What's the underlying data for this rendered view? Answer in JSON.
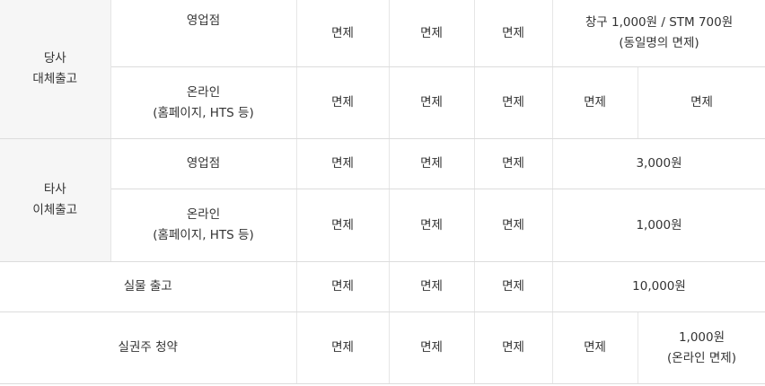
{
  "rows": {
    "own": {
      "group_line1": "당사",
      "group_line2": "대체출고",
      "branch": {
        "label": "영업점",
        "c1": "면제",
        "c2": "면제",
        "c3": "면제",
        "fee_line1": "창구 1,000원 / STM 700원",
        "fee_line2": "(동일명의 면제)"
      },
      "online": {
        "label_line1": "온라인",
        "label_line2": "(홈페이지, HTS 등)",
        "c1": "면제",
        "c2": "면제",
        "c3": "면제",
        "c4": "면제",
        "c5": "면제"
      }
    },
    "other": {
      "group_line1": "타사",
      "group_line2": "이체출고",
      "branch": {
        "label": "영업점",
        "c1": "면제",
        "c2": "면제",
        "c3": "면제",
        "fee": "3,000원"
      },
      "online": {
        "label_line1": "온라인",
        "label_line2": "(홈페이지, HTS 등)",
        "c1": "면제",
        "c2": "면제",
        "c3": "면제",
        "fee": "1,000원"
      }
    },
    "physical": {
      "label": "실물 출고",
      "c1": "면제",
      "c2": "면제",
      "c3": "면제",
      "fee": "10,000원"
    },
    "subscription": {
      "label": "실권주 청약",
      "c1": "면제",
      "c2": "면제",
      "c3": "면제",
      "c4": "면제",
      "fee_line1": "1,000원",
      "fee_line2": "(온라인 면제)"
    }
  }
}
